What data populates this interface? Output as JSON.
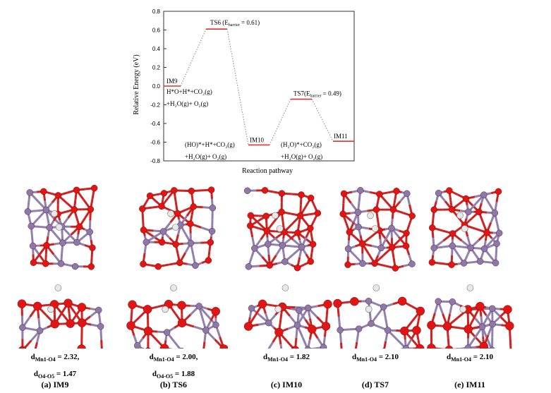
{
  "chart_data": {
    "type": "line",
    "xlabel": "Reaction pathway",
    "ylabel": "Relative Energy (eV)",
    "ylim": [
      -0.8,
      0.8
    ],
    "yticks": [
      -0.8,
      -0.6,
      -0.4,
      -0.2,
      0.0,
      0.2,
      0.4,
      0.6,
      0.8
    ],
    "levels": [
      {
        "name": "IM9",
        "energy": 0.0,
        "label": "IM9",
        "species": [
          "H*O+H*+CO₂(g)",
          "+H₂O(g)+ O₂(g)"
        ]
      },
      {
        "name": "TS6",
        "energy": 0.61,
        "label": "TS6 (E",
        "label_sub": "barrier",
        "label_tail": " = 0.61)"
      },
      {
        "name": "IM10",
        "energy": -0.63,
        "label": "IM10",
        "species": [
          "(HO)*+H*+CO₂(g)",
          "+H₂O(g)+ O₂(g)"
        ]
      },
      {
        "name": "TS7",
        "energy": -0.14,
        "label": "TS7(E",
        "label_sub": "barrier",
        "label_tail": " = 0.49)",
        "species": [
          "(H₂O)*+CO₂(g)",
          "+H₂O(g)+ O₂(g)"
        ]
      },
      {
        "name": "IM11",
        "energy": -0.59,
        "label": "IM11"
      }
    ],
    "colors": {
      "level": "#e03030",
      "connector": "#888888",
      "axis": "#333333"
    }
  },
  "panels": [
    {
      "caption": "(a) IM9",
      "measure_lines": [
        "d",
        "Mn1-O4",
        " = 2.32,",
        "d",
        "O4-O5",
        " = 1.47"
      ]
    },
    {
      "caption": "(b) TS6",
      "measure_lines": [
        "d",
        "Mn1-O4",
        " = 2.00,",
        "d",
        "O4-O5",
        " = 1.88"
      ]
    },
    {
      "caption": "(c) IM10",
      "measure_lines": [
        "d",
        "Mn1-O4",
        "   =   1.82"
      ]
    },
    {
      "caption": "(d) TS7",
      "measure_lines": [
        "d",
        "Mn1-O4",
        "   =   2.10"
      ]
    },
    {
      "caption": "(e) IM11",
      "measure_lines": [
        "d",
        "Mn1-O4",
        "   =   2.10"
      ]
    }
  ],
  "colors": {
    "oxygen": "#e01515",
    "manganese": "#8a7aaa",
    "hydrogen": "#e8e8e8",
    "bond_o": "#d02020",
    "bond_mn": "#9080b0"
  }
}
